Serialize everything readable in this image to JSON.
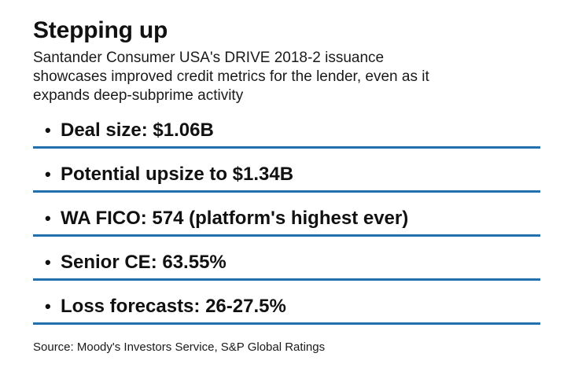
{
  "header": {
    "title": "Stepping up",
    "subtitle_lines": [
      "Santander Consumer USA's DRIVE 2018-2 issuance",
      "showcases improved credit metrics for the lender, even as it",
      "expands deep-subprime activity"
    ]
  },
  "facts": {
    "items": [
      "Deal size: $1.06B",
      "Potential upsize to $1.34B",
      "WA FICO: 574 (platform's highest ever)",
      "Senior CE: 63.55%",
      "Loss forecasts: 26-27.5%"
    ]
  },
  "footer": {
    "source": "Source: Moody's Investors Service, S&P Global Ratings"
  },
  "icons": {
    "bullet": "•"
  },
  "colors": {
    "rule_blue": "#2270ad",
    "text_black": "#111111",
    "background": "#ffffff"
  }
}
